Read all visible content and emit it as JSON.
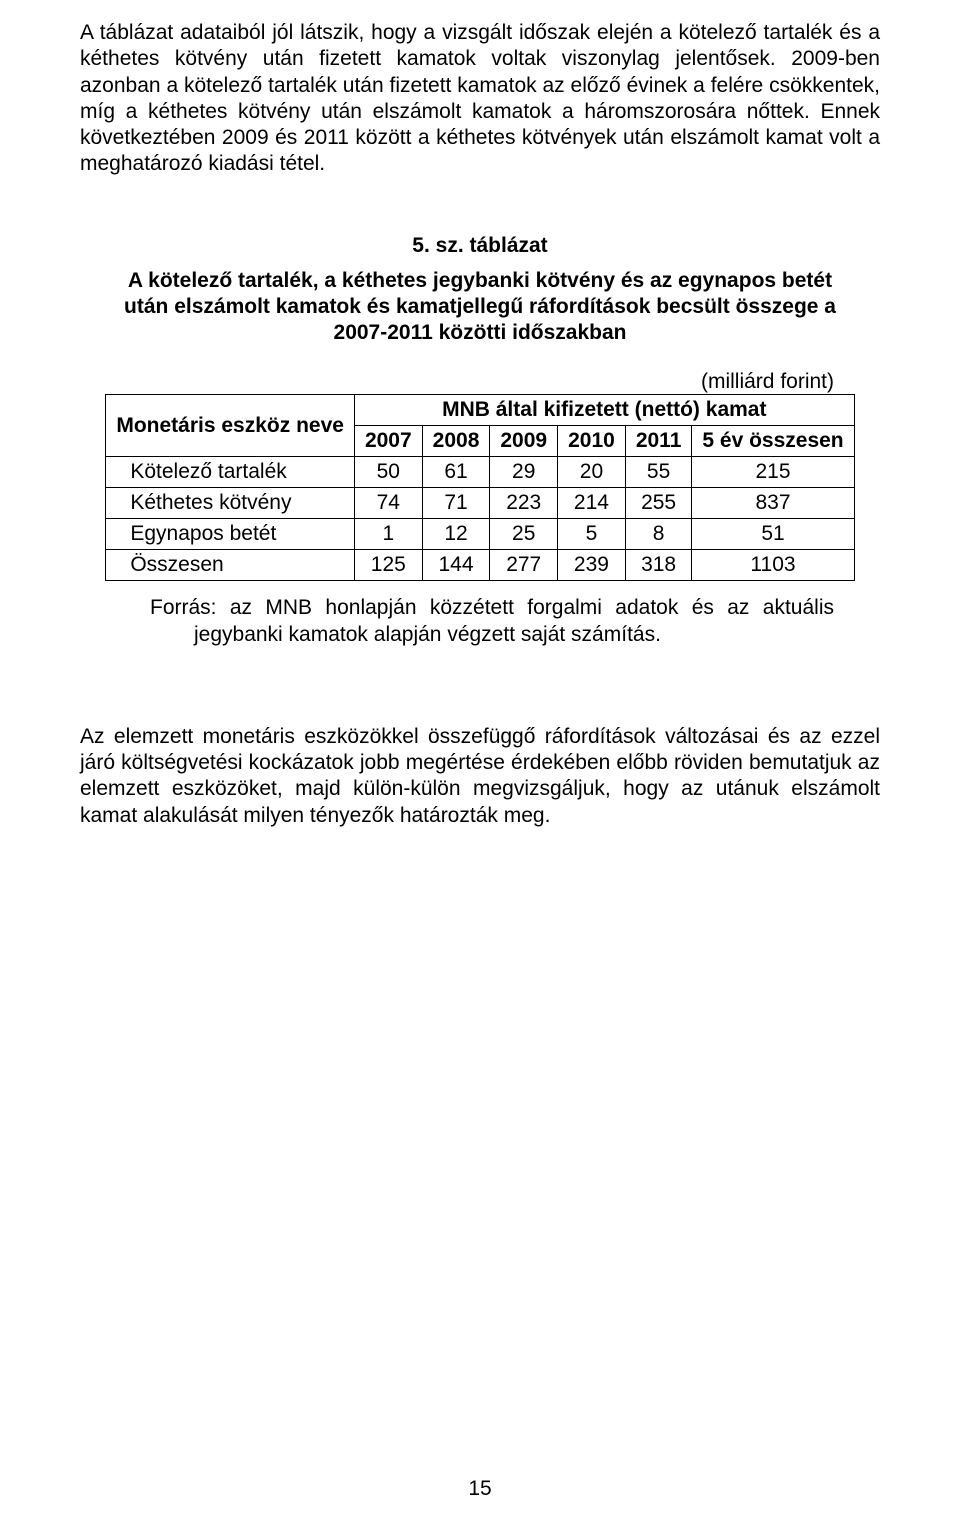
{
  "paragraph1": "A táblázat adataiból jól látszik, hogy a vizsgált időszak elején a kötelező tartalék és a kéthetes kötvény után fizetett kamatok voltak viszonylag jelentősek. 2009-ben azonban a kötelező tartalék után fizetett kamatok az előző évinek a felére csökkentek, míg a kéthetes kötvény után elszámolt kamatok a háromszorosára nőttek. Ennek következtében 2009 és 2011 között a kéthetes kötvények után elszámolt kamat volt a meghatározó kiadási tétel.",
  "table": {
    "caption": "5. sz. táblázat",
    "title": "A kötelező tartalék, a kéthetes jegybanki kötvény és az egynapos betét után elszámolt kamatok és kamatjellegű ráfordítások becsült összege a 2007-2011 közötti időszakban",
    "unit": "(milliárd forint)",
    "header_instrument": "Monetáris eszköz neve",
    "header_span": "MNB által kifizetett (nettó) kamat",
    "years": [
      "2007",
      "2008",
      "2009",
      "2010",
      "2011"
    ],
    "total_col": "5 év összesen",
    "rows": [
      {
        "label": "Kötelező tartalék",
        "vals": [
          "50",
          "61",
          "29",
          "20",
          "55"
        ],
        "total": "215"
      },
      {
        "label": "Kéthetes kötvény",
        "vals": [
          "74",
          "71",
          "223",
          "214",
          "255"
        ],
        "total": "837"
      },
      {
        "label": "Egynapos betét",
        "vals": [
          "1",
          "12",
          "25",
          "5",
          "8"
        ],
        "total": "51"
      },
      {
        "label": "Összesen",
        "vals": [
          "125",
          "144",
          "277",
          "239",
          "318"
        ],
        "total": "1103"
      }
    ],
    "source": "Forrás: az MNB honlapján közzétett forgalmi adatok és az aktuális jegybanki kamatok alapján végzett saját számítás."
  },
  "paragraph2": "Az elemzett monetáris eszközökkel összefüggő ráfordítások változásai és az ezzel járó költségvetési kockázatok jobb megértése érdekében előbb röviden bemutatjuk az elemzett eszközöket, majd külön-külön megvizsgáljuk, hogy az utánuk elszámolt kamat alakulását milyen tényezők határozták meg.",
  "page_number": "15"
}
